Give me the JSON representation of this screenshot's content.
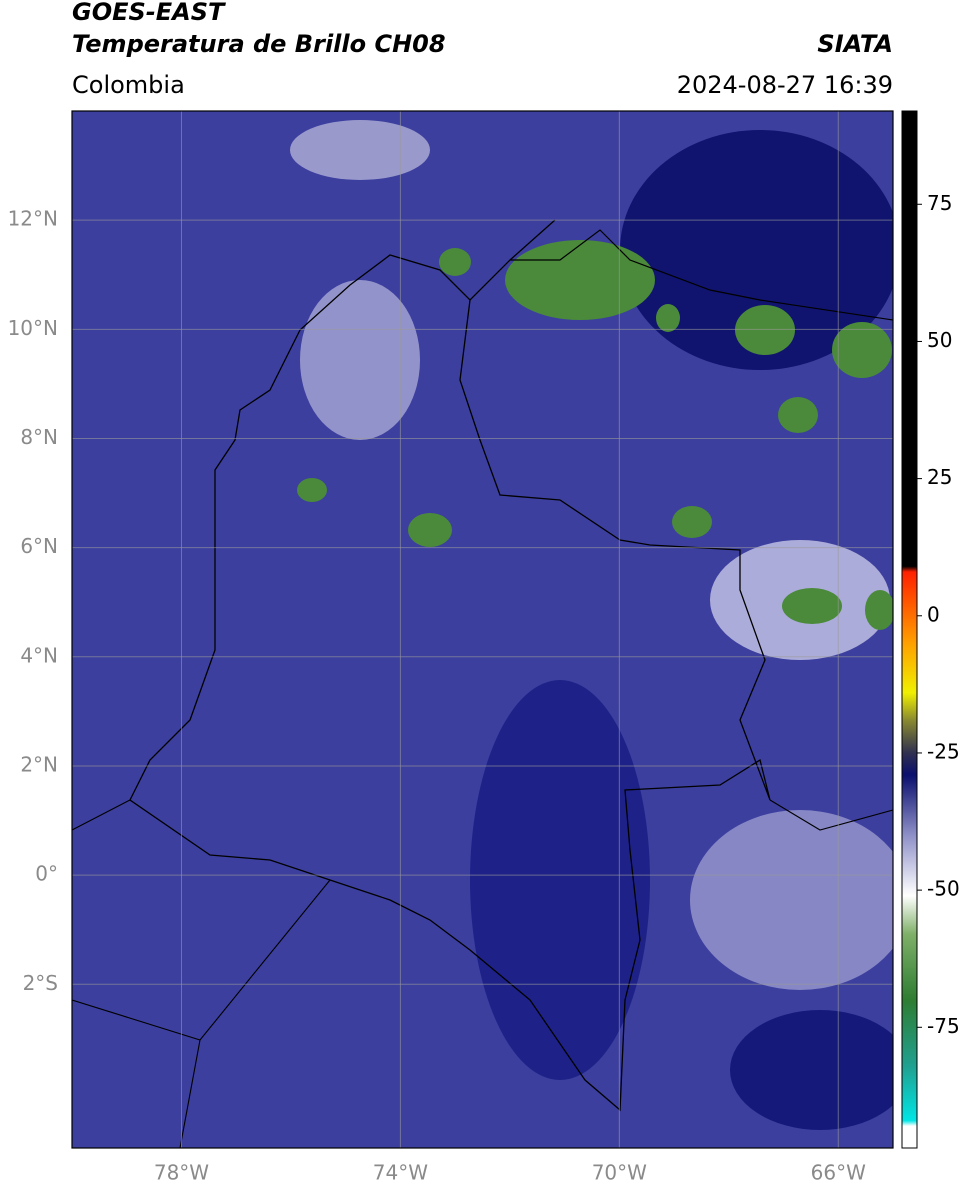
{
  "header": {
    "title": "GOES-EAST",
    "subtitle": "Temperatura de Brillo CH08",
    "source": "SIATA",
    "region": "Colombia",
    "datetime": "2024-08-27 16:39"
  },
  "map": {
    "xlim": [
      -80,
      -65
    ],
    "ylim": [
      -5,
      14
    ],
    "xticks": [
      {
        "value": -78,
        "label": "78°W"
      },
      {
        "value": -74,
        "label": "74°W"
      },
      {
        "value": -70,
        "label": "70°W"
      },
      {
        "value": -66,
        "label": "66°W"
      }
    ],
    "yticks": [
      {
        "value": 12,
        "label": "12°N"
      },
      {
        "value": 10,
        "label": "10°N"
      },
      {
        "value": 8,
        "label": "8°N"
      },
      {
        "value": 6,
        "label": "6°N"
      },
      {
        "value": 4,
        "label": "4°N"
      },
      {
        "value": 2,
        "label": "2°N"
      },
      {
        "value": 0,
        "label": "0°"
      },
      {
        "value": -2,
        "label": "2°S"
      }
    ],
    "grid": true
  },
  "colorbar": {
    "lim": [
      -97,
      92
    ],
    "ticks": [
      75,
      50,
      25,
      0,
      -25,
      -50,
      -75
    ],
    "stops": [
      {
        "value": -97,
        "color": "#ffffff"
      },
      {
        "value": -93,
        "color": "#ffffff"
      },
      {
        "value": -92,
        "color": "#00e5e5"
      },
      {
        "value": -82,
        "color": "#20a090"
      },
      {
        "value": -70,
        "color": "#2e7d32"
      },
      {
        "value": -58,
        "color": "#7fb069"
      },
      {
        "value": -51,
        "color": "#ffffff"
      },
      {
        "value": -40,
        "color": "#8e90c8"
      },
      {
        "value": -29,
        "color": "#0b0f6e"
      },
      {
        "value": -25,
        "color": "#303050"
      },
      {
        "value": -19,
        "color": "#8a8a30"
      },
      {
        "value": -14,
        "color": "#f0f000"
      },
      {
        "value": -5,
        "color": "#ffa000"
      },
      {
        "value": 8,
        "color": "#ff2000"
      },
      {
        "value": 9,
        "color": "#000000"
      },
      {
        "value": 92,
        "color": "#000000"
      }
    ]
  }
}
